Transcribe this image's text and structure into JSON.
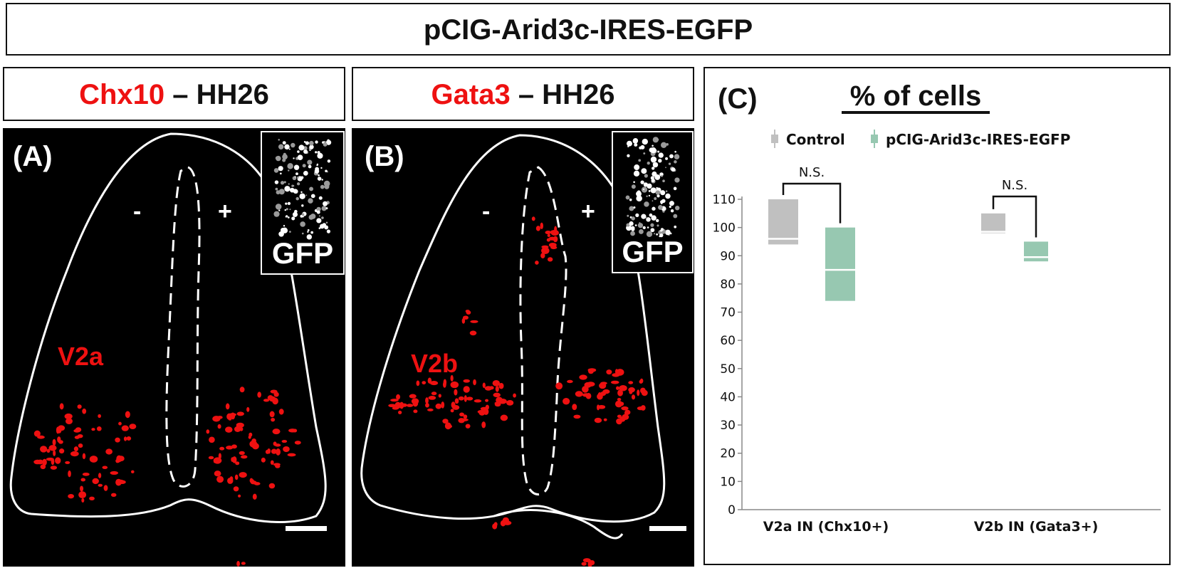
{
  "figure": {
    "title": "pCIG-Arid3c-IRES-EGFP",
    "panels": [
      {
        "label": "(A)",
        "header_marker": "Chx10",
        "header_rest": " – HH26",
        "inset_label": "GFP",
        "minus": "-",
        "plus": "+",
        "region_label": "V2a"
      },
      {
        "label": "(B)",
        "header_marker": "Gata3",
        "header_rest": " – HH26",
        "inset_label": "GFP",
        "minus": "-",
        "plus": "+",
        "region_label": "V2b"
      }
    ],
    "colors": {
      "marker_red": "#ee1111",
      "control": "#c0c0c0",
      "arid3c": "#97c8b1",
      "background_panel": "#000000"
    }
  },
  "chart_panel": {
    "label": "(C)",
    "title": "% of cells"
  },
  "chart_data": {
    "type": "box",
    "categories": [
      "V2a IN (Chx10+)",
      "V2b IN (Gata3+)"
    ],
    "ylim": [
      0,
      110
    ],
    "yticks": [
      0,
      10,
      20,
      30,
      40,
      50,
      60,
      70,
      80,
      90,
      100,
      110
    ],
    "legend_position": "top",
    "series": [
      {
        "name": "Control",
        "color": "#c0c0c0",
        "boxes": [
          {
            "low": 94,
            "high": 110,
            "median": 96
          },
          {
            "low": 98,
            "high": 105,
            "median": 98.5
          }
        ]
      },
      {
        "name": "pCIG-Arid3c-IRES-EGFP",
        "color": "#97c8b1",
        "boxes": [
          {
            "low": 74,
            "high": 100,
            "median": 85
          },
          {
            "low": 88,
            "high": 95,
            "median": 89.5
          }
        ]
      }
    ],
    "annotations": [
      "N.S.",
      "N.S."
    ]
  }
}
